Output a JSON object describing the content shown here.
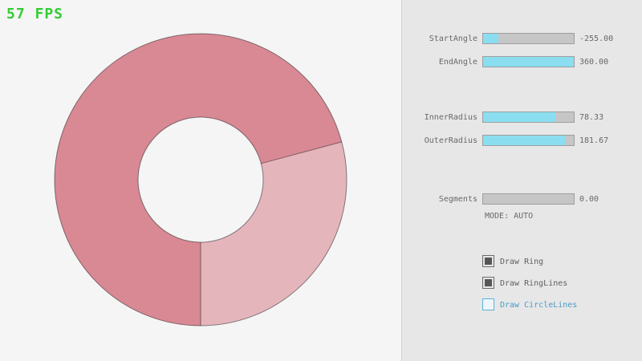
{
  "fps": {
    "text": "57 FPS"
  },
  "ring": {
    "start_angle": -255.0,
    "end_angle": 360.0,
    "inner_radius": 78.33,
    "outer_radius": 181.67,
    "segments": 0.0,
    "mode": "AUTO"
  },
  "colors": {
    "fps_green": "#32cd32",
    "ring_dark": "#d98994",
    "ring_light": "#e5b5bc",
    "ring_outline": "rgba(0,0,0,0.45)",
    "slider_fill_cyan": "#8adef0",
    "text_gray": "#686868",
    "focus_blue": "#5bb2d9"
  },
  "panel": {
    "sliders": [
      {
        "label": "StartAngle",
        "value": "-255.00",
        "fill_pct": 17
      },
      {
        "label": "EndAngle",
        "value": "360.00",
        "fill_pct": 100
      },
      {
        "label": "InnerRadius",
        "value": "78.33",
        "fill_pct": 80
      },
      {
        "label": "OuterRadius",
        "value": "181.67",
        "fill_pct": 90
      },
      {
        "label": "Segments",
        "value": "0.00",
        "fill_pct": 0
      }
    ],
    "mode_text": "MODE: AUTO",
    "checkboxes": [
      {
        "label": "Draw Ring",
        "checked": true
      },
      {
        "label": "Draw RingLines",
        "checked": true
      },
      {
        "label": "Draw CircleLines",
        "checked": false
      }
    ]
  }
}
